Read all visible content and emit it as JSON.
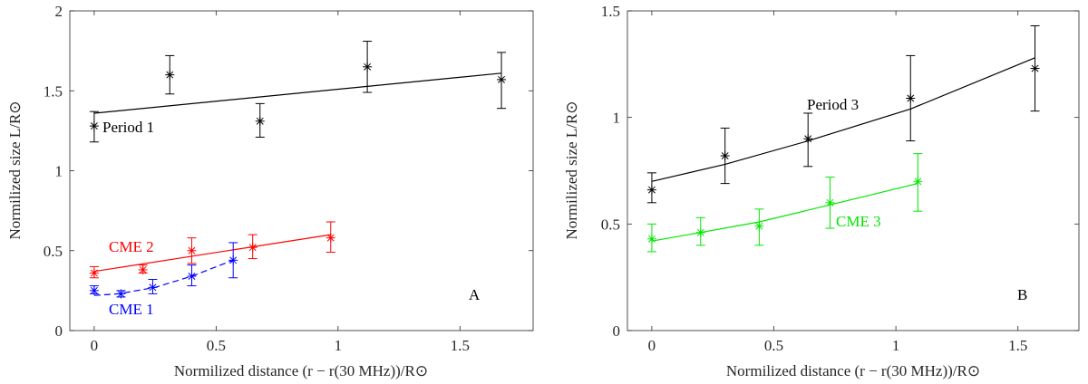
{
  "chart_data": [
    {
      "type": "scatter",
      "panel_label": "A",
      "xlabel": "Normilized distance (r − r(30 MHz))/R⊙",
      "ylabel": "Normilized size L/R⊙",
      "xlim": [
        -0.1,
        1.8
      ],
      "ylim": [
        0,
        2
      ],
      "x_ticks": [
        "0",
        "0.5",
        "1",
        "1.5"
      ],
      "y_ticks": [
        "0",
        "0.5",
        "1",
        "1.5",
        "2"
      ],
      "grid": false,
      "series": [
        {
          "name": "Period 1",
          "color": "#000000",
          "line_style": "solid",
          "points": [
            {
              "x": 0.0,
              "y": 1.28,
              "lo": 1.18,
              "hi": 1.37
            },
            {
              "x": 0.31,
              "y": 1.6,
              "lo": 1.48,
              "hi": 1.72
            },
            {
              "x": 0.68,
              "y": 1.31,
              "lo": 1.21,
              "hi": 1.42
            },
            {
              "x": 1.12,
              "y": 1.65,
              "lo": 1.49,
              "hi": 1.81
            },
            {
              "x": 1.67,
              "y": 1.57,
              "lo": 1.39,
              "hi": 1.74
            }
          ],
          "fit": [
            [
              0.0,
              1.36
            ],
            [
              1.67,
              1.61
            ]
          ]
        },
        {
          "name": "CME 2",
          "color": "#ff0000",
          "line_style": "solid",
          "points": [
            {
              "x": 0.0,
              "y": 0.36,
              "lo": 0.33,
              "hi": 0.4
            },
            {
              "x": 0.2,
              "y": 0.38,
              "lo": 0.36,
              "hi": 0.41
            },
            {
              "x": 0.4,
              "y": 0.5,
              "lo": 0.42,
              "hi": 0.58
            },
            {
              "x": 0.65,
              "y": 0.52,
              "lo": 0.45,
              "hi": 0.6
            },
            {
              "x": 0.97,
              "y": 0.58,
              "lo": 0.49,
              "hi": 0.68
            }
          ],
          "fit": [
            [
              0.0,
              0.37
            ],
            [
              0.97,
              0.6
            ]
          ]
        },
        {
          "name": "CME 1",
          "color": "#0000ff",
          "line_style": "dashed",
          "points": [
            {
              "x": 0.0,
              "y": 0.25,
              "lo": 0.23,
              "hi": 0.28
            },
            {
              "x": 0.11,
              "y": 0.23,
              "lo": 0.21,
              "hi": 0.25
            },
            {
              "x": 0.24,
              "y": 0.27,
              "lo": 0.23,
              "hi": 0.32
            },
            {
              "x": 0.4,
              "y": 0.34,
              "lo": 0.28,
              "hi": 0.41
            },
            {
              "x": 0.57,
              "y": 0.44,
              "lo": 0.33,
              "hi": 0.55
            }
          ],
          "fit": [
            [
              0.0,
              0.22
            ],
            [
              0.1,
              0.23
            ],
            [
              0.25,
              0.27
            ],
            [
              0.4,
              0.34
            ],
            [
              0.57,
              0.44
            ]
          ]
        }
      ]
    },
    {
      "type": "scatter",
      "panel_label": "B",
      "xlabel": "Normilized distance (r − r(30 MHz))/R⊙",
      "ylabel": "Normilized size L/R⊙",
      "xlim": [
        -0.1,
        1.75
      ],
      "ylim": [
        0,
        1.5
      ],
      "x_ticks": [
        "0",
        "0.5",
        "1",
        "1.5"
      ],
      "y_ticks": [
        "0",
        "0.5",
        "1",
        "1.5"
      ],
      "grid": false,
      "series": [
        {
          "name": "Period 3",
          "color": "#000000",
          "line_style": "solid",
          "points": [
            {
              "x": 0.0,
              "y": 0.66,
              "lo": 0.6,
              "hi": 0.74
            },
            {
              "x": 0.3,
              "y": 0.82,
              "lo": 0.69,
              "hi": 0.95
            },
            {
              "x": 0.64,
              "y": 0.9,
              "lo": 0.77,
              "hi": 1.02
            },
            {
              "x": 1.06,
              "y": 1.09,
              "lo": 0.89,
              "hi": 1.29
            },
            {
              "x": 1.57,
              "y": 1.23,
              "lo": 1.03,
              "hi": 1.43
            }
          ],
          "fit": [
            [
              0.0,
              0.7
            ],
            [
              0.3,
              0.78
            ],
            [
              0.64,
              0.89
            ],
            [
              1.06,
              1.04
            ],
            [
              1.57,
              1.28
            ]
          ]
        },
        {
          "name": "CME 3",
          "color": "#00e600",
          "line_style": "solid",
          "points": [
            {
              "x": 0.0,
              "y": 0.43,
              "lo": 0.37,
              "hi": 0.5
            },
            {
              "x": 0.2,
              "y": 0.46,
              "lo": 0.4,
              "hi": 0.53
            },
            {
              "x": 0.44,
              "y": 0.49,
              "lo": 0.4,
              "hi": 0.57
            },
            {
              "x": 0.73,
              "y": 0.6,
              "lo": 0.48,
              "hi": 0.72
            },
            {
              "x": 1.09,
              "y": 0.7,
              "lo": 0.56,
              "hi": 0.83
            }
          ],
          "fit": [
            [
              0.0,
              0.42
            ],
            [
              0.2,
              0.46
            ],
            [
              0.44,
              0.51
            ],
            [
              0.73,
              0.59
            ],
            [
              1.09,
              0.69
            ]
          ]
        }
      ]
    }
  ]
}
